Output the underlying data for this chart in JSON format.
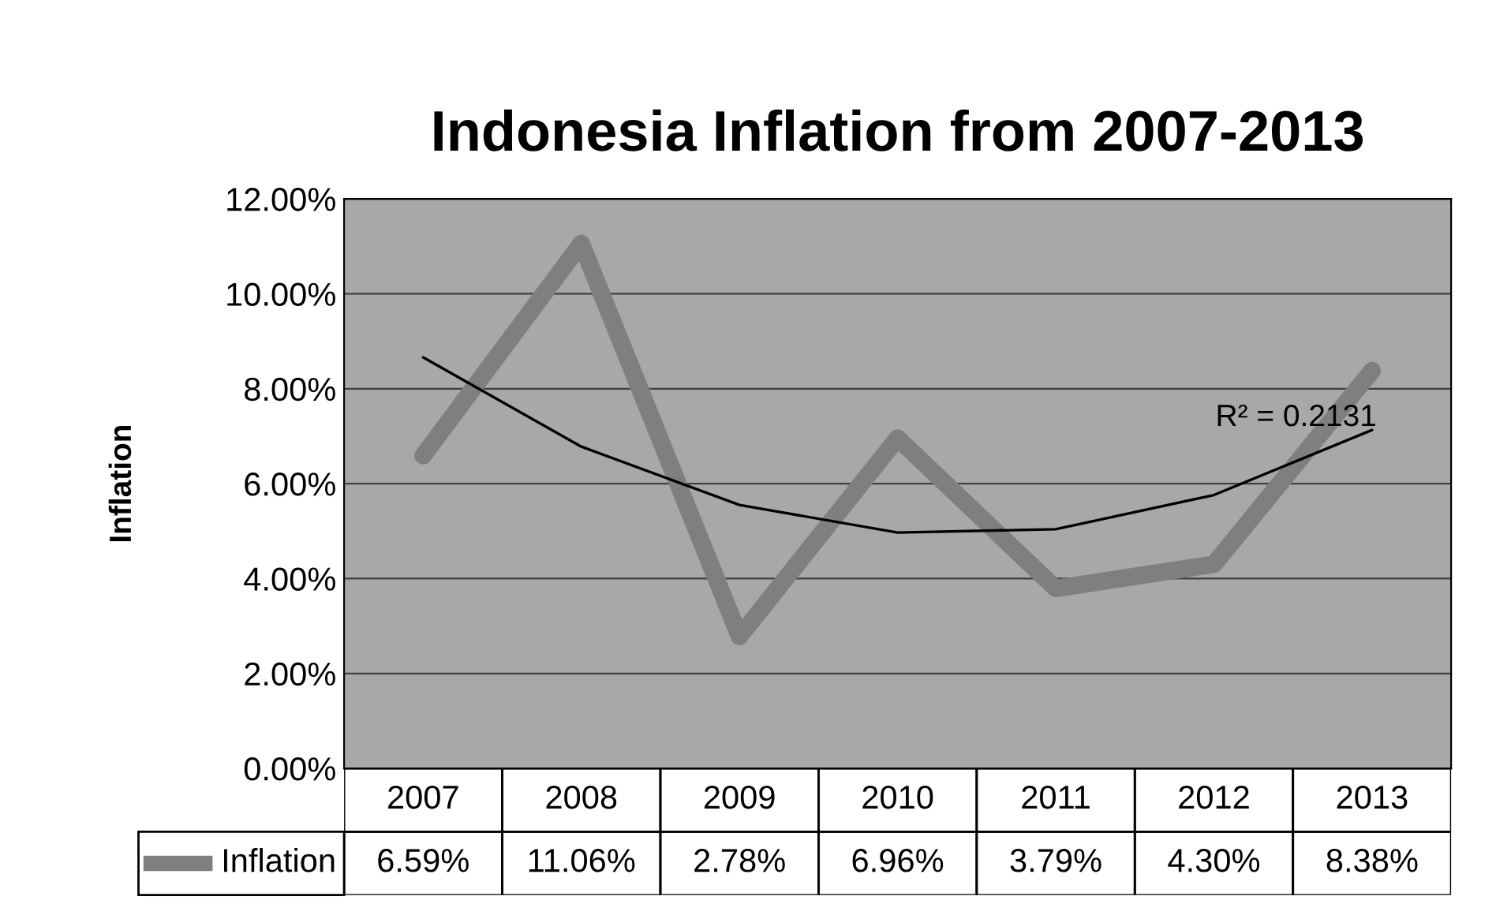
{
  "chart_data": {
    "type": "line",
    "title": "Indonesia Inflation from 2007-2013",
    "ylabel": "Inflation",
    "categories": [
      "2007",
      "2008",
      "2009",
      "2010",
      "2011",
      "2012",
      "2013"
    ],
    "series": [
      {
        "name": "Inflation",
        "color": "#7f7f7f",
        "values": [
          6.59,
          11.06,
          2.78,
          6.96,
          3.79,
          4.3,
          8.38
        ],
        "value_labels": [
          "6.59%",
          "11.06%",
          "2.78%",
          "6.96%",
          "3.79%",
          "4.30%",
          "8.38%"
        ]
      },
      {
        "type": "line",
        "color": "#000000",
        "values": [
          8.66,
          6.78,
          5.55,
          4.97,
          5.04,
          5.76,
          7.13
        ]
      }
    ],
    "ylim": [
      0,
      12
    ],
    "yticks": [
      {
        "value": 0,
        "label": "0.00%"
      },
      {
        "value": 2,
        "label": "2.00%"
      },
      {
        "value": 4,
        "label": "4.00%"
      },
      {
        "value": 6,
        "label": "6.00%"
      },
      {
        "value": 8,
        "label": "8.00%"
      },
      {
        "value": 10,
        "label": "10.00%"
      },
      {
        "value": 12,
        "label": "12.00%"
      }
    ],
    "grid": "y",
    "legend": "bottom left",
    "marker": "none",
    "line_style": "solid",
    "annotations": [
      "R² = 0.2131"
    ]
  }
}
